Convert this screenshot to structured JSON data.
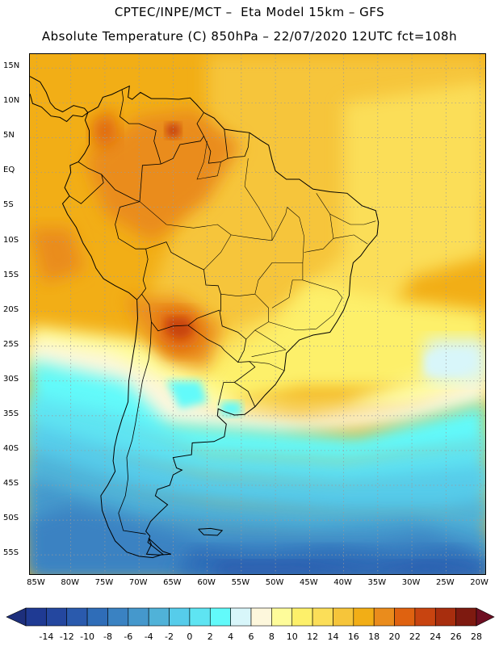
{
  "header": {
    "line1": "CPTEC/INPE/MCT –  Eta Model 15km – GFS",
    "line2": "Absolute Temperature (C) 850hPa – 22/07/2020 12UTC fct=108h"
  },
  "map": {
    "variable": "Absolute Temperature (C) 850hPa",
    "lat_range": [
      -58,
      17
    ],
    "lon_range": [
      -86,
      -19
    ],
    "lat_labels": [
      "15N",
      "10N",
      "5N",
      "EQ",
      "5S",
      "10S",
      "15S",
      "20S",
      "25S",
      "30S",
      "35S",
      "40S",
      "45S",
      "50S",
      "55S"
    ],
    "lon_labels": [
      "85W",
      "80W",
      "75W",
      "70W",
      "65W",
      "60W",
      "55W",
      "50W",
      "45W",
      "40W",
      "35W",
      "30W",
      "25W",
      "20W"
    ],
    "gridlines": "dotted"
  },
  "colorbar": {
    "labels": [
      "-14",
      "-12",
      "-10",
      "-8",
      "-6",
      "-4",
      "-2",
      "0",
      "2",
      "4",
      "6",
      "8",
      "10",
      "12",
      "14",
      "16",
      "18",
      "20",
      "22",
      "24",
      "26",
      "28"
    ],
    "colors": [
      "#1f3a93",
      "#24479f",
      "#2a5aad",
      "#2f6db8",
      "#3a82c2",
      "#4598cc",
      "#50b2d8",
      "#56ccea",
      "#5ee4f2",
      "#62fafa",
      "#d8f6fa",
      "#fdf7dc",
      "#fefc9a",
      "#fdf06a",
      "#fbde58",
      "#f6c53a",
      "#f2ae16",
      "#ea8c1c",
      "#df6210",
      "#c84410",
      "#a82e0e",
      "#7e1a10"
    ],
    "arrow_low": "#1d2f7c",
    "arrow_high": "#6e0f22"
  }
}
